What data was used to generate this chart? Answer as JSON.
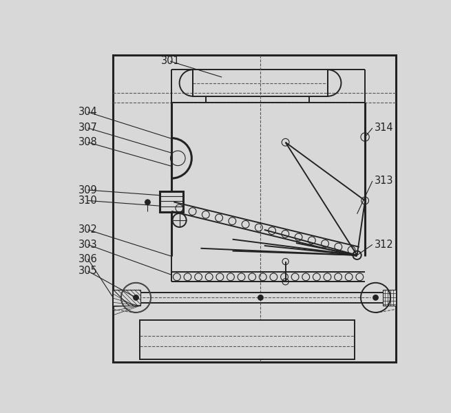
{
  "bg_color": "#d8d8d8",
  "line_color": "#222222",
  "fig_width": 6.55,
  "fig_height": 6.0,
  "font_size": 10.5,
  "lw_thick": 2.2,
  "lw_main": 1.4,
  "lw_thin": 0.8
}
